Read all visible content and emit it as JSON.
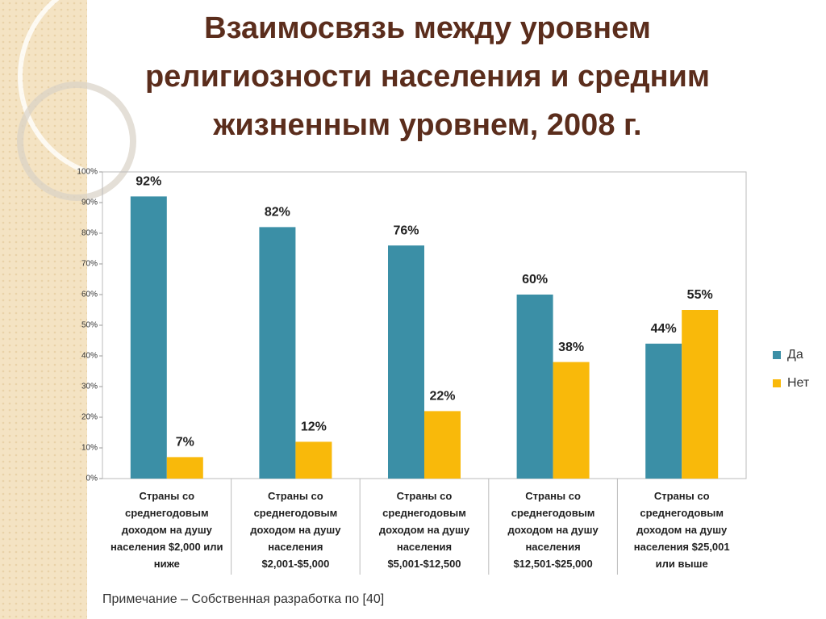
{
  "chart_data": {
    "type": "bar",
    "title": [
      "Взаимосвязь между уровнем",
      "религиозности населения и средним",
      "жизненным уровнем, 2008 г."
    ],
    "categories": [
      "Страны со среднегодовым доходом на душу населения $2,000 или ниже",
      "Страны со среднегодовым доходом на душу населения $2,001-$5,000",
      "Страны со среднегодовым доходом на душу населения $5,001-$12,500",
      "Страны со среднегодовым доходом на душу населения $12,501-$25,000",
      "Страны со среднегодовым доходом на душу населения $25,001 или выше"
    ],
    "series": [
      {
        "name": "Да",
        "color": "#3b8fa6",
        "values": [
          92,
          82,
          76,
          60,
          44
        ],
        "value_labels": [
          "92%",
          "82%",
          "76%",
          "60%",
          "44%"
        ]
      },
      {
        "name": "Нет",
        "color": "#f9b90a",
        "values": [
          7,
          12,
          22,
          38,
          55
        ],
        "value_labels": [
          "7%",
          "12%",
          "22%",
          "38%",
          "55%"
        ]
      }
    ],
    "ylim": [
      0,
      100
    ],
    "yticks": [
      {
        "value": 0,
        "label": "0%"
      },
      {
        "value": 10,
        "label": "10%"
      },
      {
        "value": 20,
        "label": "20%"
      },
      {
        "value": 30,
        "label": "30%"
      },
      {
        "value": 40,
        "label": "40%"
      },
      {
        "value": 50,
        "label": "50%"
      },
      {
        "value": 60,
        "label": "60%"
      },
      {
        "value": 70,
        "label": "70%"
      },
      {
        "value": 80,
        "label": "80%"
      },
      {
        "value": 90,
        "label": "90%"
      },
      {
        "value": 100,
        "label": "100%"
      }
    ],
    "grid": false,
    "legend": "right",
    "note": "Примечание – Собственная разработка по [40]"
  }
}
